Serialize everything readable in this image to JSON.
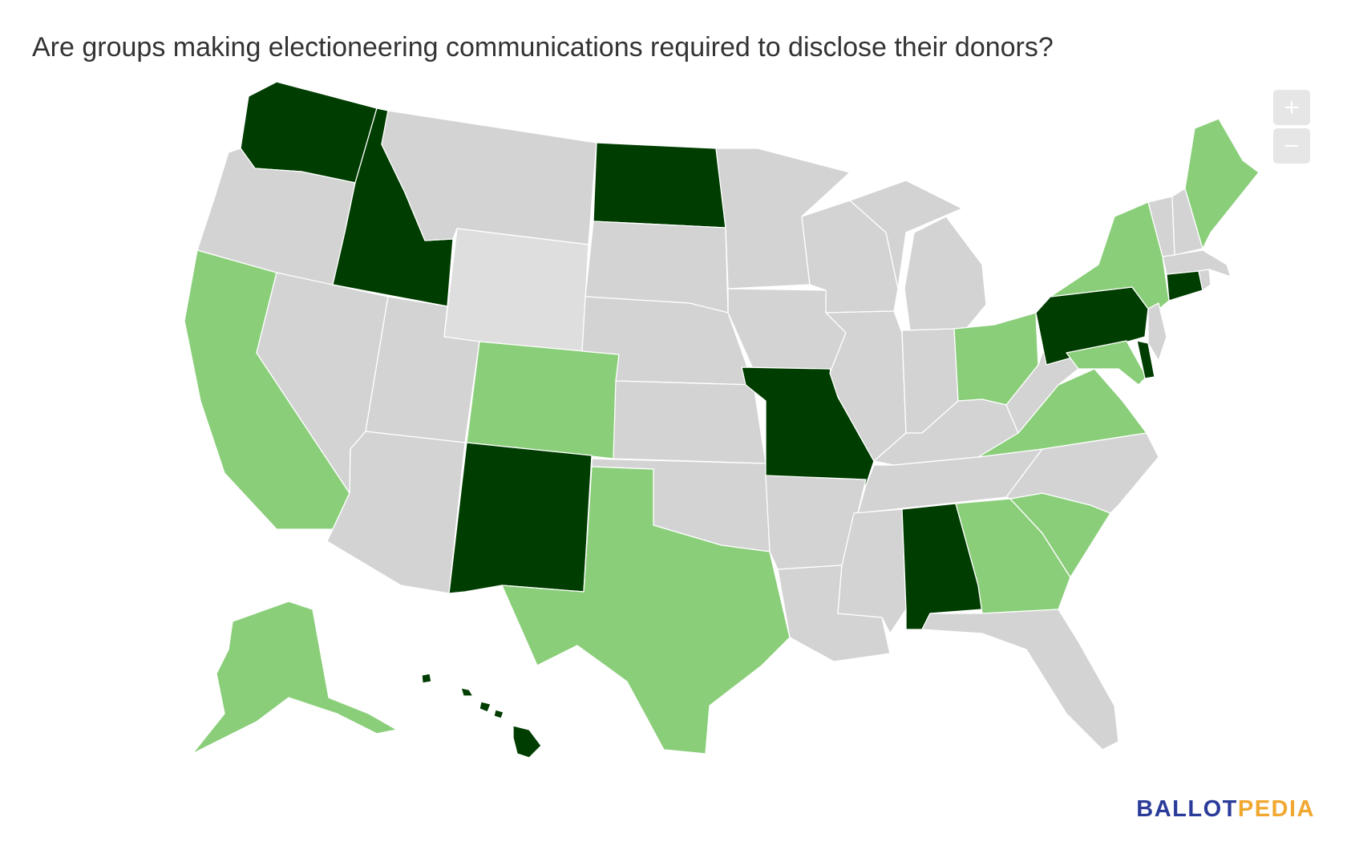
{
  "title": "Are groups making electioneering communications required to disclose their donors?",
  "zoom": {
    "in_label": "+",
    "out_label": "−"
  },
  "logo": {
    "part1": "BALLOT",
    "part2": "PEDIA",
    "color1": "#2b3b9a",
    "color2": "#f0a830"
  },
  "colors": {
    "dark": "#003d00",
    "light": "#8ace7a",
    "none": "#d3d3d3",
    "pale": "#dedede"
  },
  "states": {
    "WA": "dark",
    "OR": "none",
    "CA": "light",
    "NV": "none",
    "ID": "dark",
    "MT": "none",
    "WY": "pale",
    "UT": "none",
    "AZ": "none",
    "CO": "light",
    "NM": "dark",
    "ND": "dark",
    "SD": "none",
    "NE": "none",
    "KS": "none",
    "OK": "none",
    "TX": "light",
    "MN": "none",
    "IA": "none",
    "MO": "dark",
    "AR": "none",
    "LA": "none",
    "WI": "none",
    "IL": "none",
    "MI": "none",
    "IN": "none",
    "OH": "light",
    "KY": "none",
    "TN": "none",
    "MS": "none",
    "AL": "dark",
    "GA": "light",
    "FL": "none",
    "SC": "light",
    "NC": "none",
    "VA": "light",
    "WV": "none",
    "PA": "dark",
    "NY": "light",
    "VT": "none",
    "NH": "none",
    "ME": "light",
    "MA": "none",
    "RI": "none",
    "CT": "dark",
    "NJ": "none",
    "DE": "dark",
    "MD": "light",
    "AK": "light",
    "HI": "dark"
  }
}
